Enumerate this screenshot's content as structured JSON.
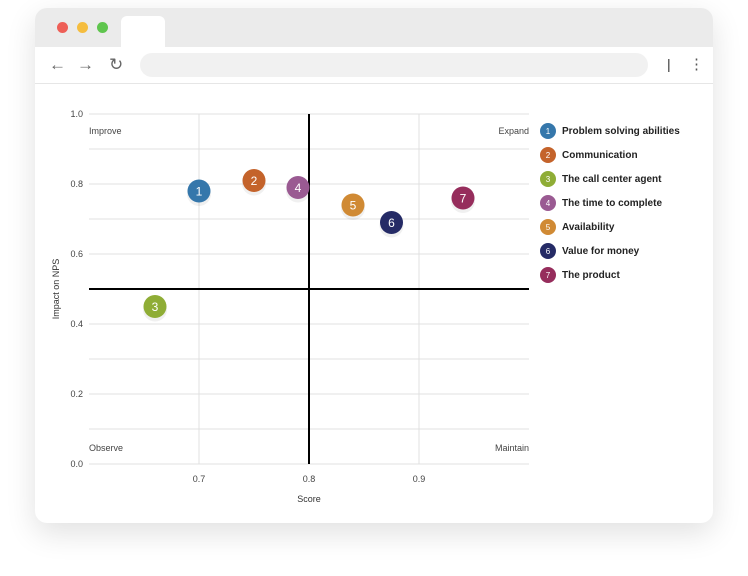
{
  "chart_data": {
    "type": "scatter",
    "xlabel": "Score",
    "ylabel": "Impact on NPS",
    "xlim": [
      0.6,
      1.0
    ],
    "ylim": [
      0.0,
      1.0
    ],
    "x_ticks": [
      "0.7",
      "0.8",
      "0.9"
    ],
    "y_ticks": [
      "0.0",
      "0.2",
      "0.4",
      "0.6",
      "0.8",
      "1.0"
    ],
    "grid": true,
    "divider": {
      "x": 0.8,
      "y": 0.5
    },
    "quadrants": {
      "top_left": "Improve",
      "top_right": "Expand",
      "bottom_left": "Observe",
      "bottom_right": "Maintain"
    },
    "legend_position": "right",
    "points": [
      {
        "id": "1",
        "name": "Problem solving abilities",
        "x": 0.7,
        "y": 0.78,
        "color": "#3577ab"
      },
      {
        "id": "2",
        "name": "Communication",
        "x": 0.75,
        "y": 0.81,
        "color": "#c4632b"
      },
      {
        "id": "3",
        "name": "The call center agent",
        "x": 0.66,
        "y": 0.45,
        "color": "#8fad36"
      },
      {
        "id": "4",
        "name": "The time to complete",
        "x": 0.79,
        "y": 0.79,
        "color": "#9a5a92"
      },
      {
        "id": "5",
        "name": "Availability",
        "x": 0.84,
        "y": 0.74,
        "color": "#d08a34"
      },
      {
        "id": "6",
        "name": "Value for money",
        "x": 0.875,
        "y": 0.69,
        "color": "#252b66"
      },
      {
        "id": "7",
        "name": "The product",
        "x": 0.94,
        "y": 0.76,
        "color": "#962d5c"
      }
    ]
  }
}
